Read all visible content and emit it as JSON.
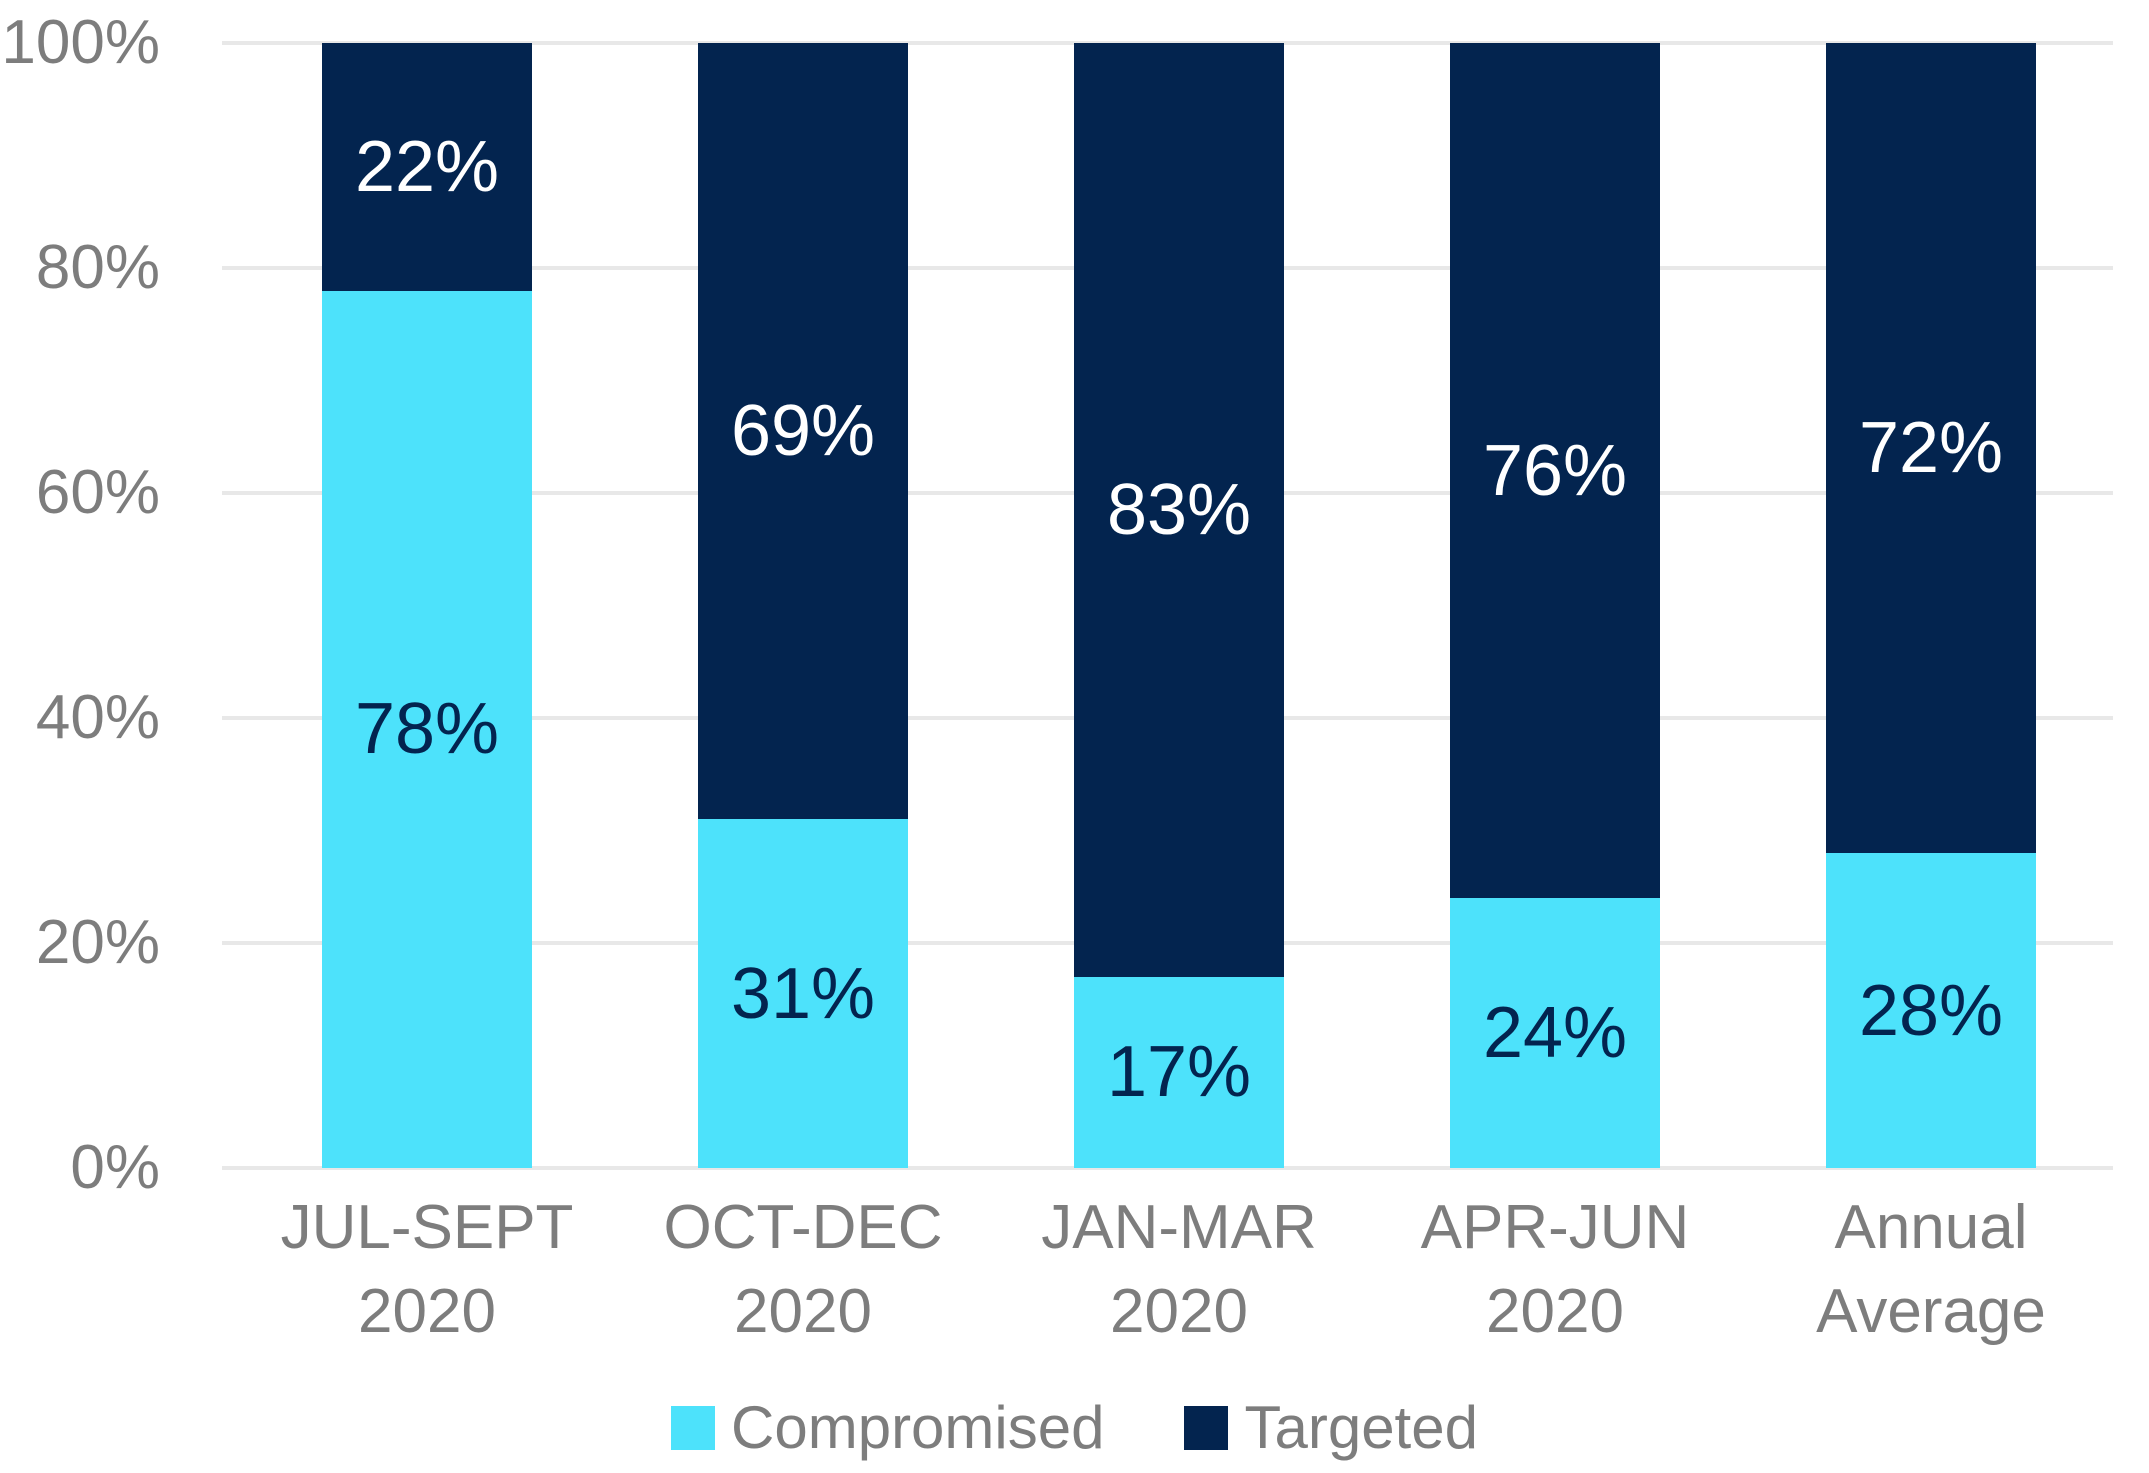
{
  "chart_data": {
    "type": "bar",
    "stacked": true,
    "orientation": "vertical",
    "grid": true,
    "legend_position": "bottom",
    "categories": [
      {
        "line1": "JUL-SEPT",
        "line2": "2020"
      },
      {
        "line1": "OCT-DEC",
        "line2": "2020"
      },
      {
        "line1": "JAN-MAR",
        "line2": "2020"
      },
      {
        "line1": "APR-JUN",
        "line2": "2020"
      },
      {
        "line1": "Annual",
        "line2": "Average"
      }
    ],
    "series": [
      {
        "name": "Compromised",
        "color": "#4de2fb",
        "label_color": "#03244f",
        "values": [
          78,
          31,
          17,
          24,
          28
        ],
        "labels": [
          "78%",
          "31%",
          "17%",
          "24%",
          "28%"
        ]
      },
      {
        "name": "Targeted",
        "color": "#03244f",
        "label_color": "#ffffff",
        "values": [
          22,
          69,
          83,
          76,
          72
        ],
        "labels": [
          "22%",
          "69%",
          "83%",
          "76%",
          "72%"
        ]
      }
    ],
    "y_axis": {
      "min": 0,
      "max": 100,
      "tick_step": 20,
      "ticks": [
        "0%",
        "20%",
        "40%",
        "60%",
        "80%",
        "100%"
      ]
    },
    "legend": [
      {
        "label": "Compromised",
        "color": "#4de2fb"
      },
      {
        "label": "Targeted",
        "color": "#03244f"
      }
    ]
  },
  "colors": {
    "background": "#ffffff",
    "gridline": "#e8e8e8",
    "axis_text": "#7d7d7d",
    "compromised": "#4de2fb",
    "targeted": "#03244f"
  }
}
